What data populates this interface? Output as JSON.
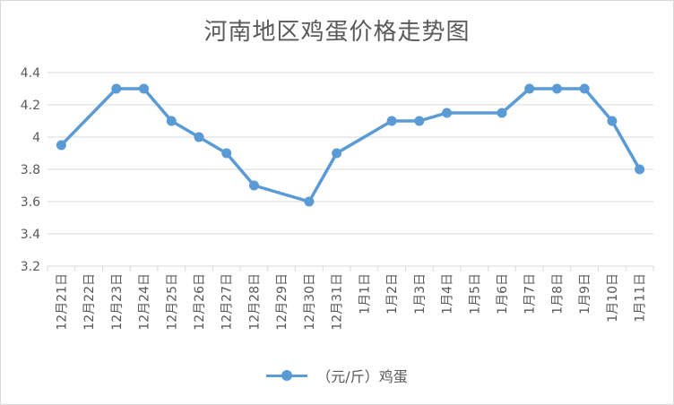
{
  "chart_data": {
    "type": "line",
    "title": "河南地区鸡蛋价格走势图",
    "xlabel": "",
    "ylabel": "",
    "categories": [
      "12月21日",
      "12月22日",
      "12月23日",
      "12月24日",
      "12月25日",
      "12月26日",
      "12月27日",
      "12月28日",
      "12月29日",
      "12月30日",
      "12月31日",
      "1月1日",
      "1月2日",
      "1月3日",
      "1月4日",
      "1月5日",
      "1月6日",
      "1月7日",
      "1月8日",
      "1月9日",
      "1月10日",
      "1月11日"
    ],
    "series": [
      {
        "name": "（元/斤）鸡蛋",
        "color": "#5b9bd5",
        "values": [
          3.95,
          null,
          4.3,
          4.3,
          4.1,
          4.0,
          3.9,
          3.7,
          null,
          3.6,
          3.9,
          null,
          4.1,
          4.1,
          4.15,
          null,
          4.15,
          4.3,
          4.3,
          4.3,
          4.1,
          3.8
        ]
      }
    ],
    "ylim": [
      3.2,
      4.4
    ],
    "yticks": [
      "3.2",
      "3.4",
      "3.6",
      "3.8",
      "4",
      "4.2",
      "4.4"
    ],
    "grid": true,
    "legend_position": "bottom"
  }
}
